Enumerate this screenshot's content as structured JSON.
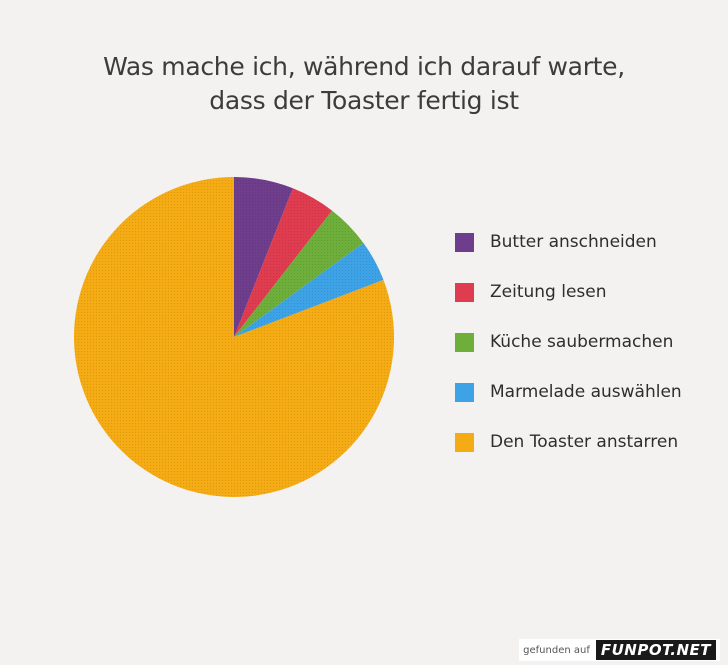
{
  "chart_data": {
    "type": "pie",
    "title_lines": [
      "Was mache ich, während ich darauf warte,",
      "dass der Toaster fertig ist"
    ],
    "legend_position": "right",
    "slices": [
      {
        "label": "Butter anschneiden",
        "value": 6,
        "color": "#6e3d8b"
      },
      {
        "label": "Zeitung lesen",
        "value": 4.5,
        "color": "#e03c4f"
      },
      {
        "label": "Küche saubermachen",
        "value": 4.5,
        "color": "#6eae3a"
      },
      {
        "label": "Marmelade auswählen",
        "value": 4.2,
        "color": "#3ea2e6"
      },
      {
        "label": "Den Toaster anstarren",
        "value": 80.8,
        "color": "#f5ab14"
      }
    ]
  },
  "footer": {
    "prefix": "gefunden auf",
    "logo": "FUNPOT.NET"
  }
}
